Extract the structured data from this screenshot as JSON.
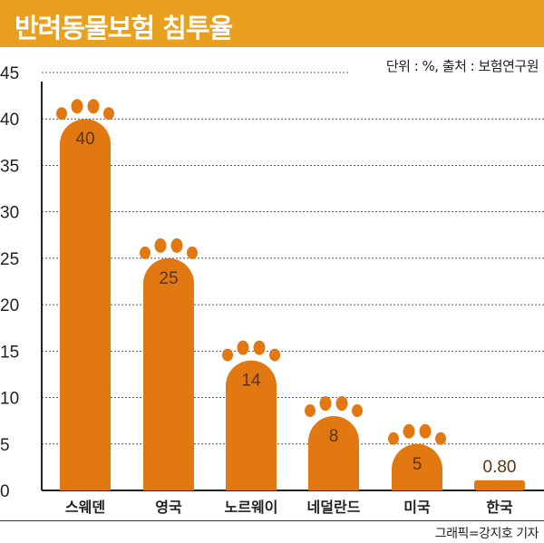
{
  "chart_data": {
    "type": "bar",
    "title": "반려동물보험 침투율",
    "note": "단위 : %, 출처 : 보험연구원",
    "credit": "그래픽=강지호 기자",
    "categories": [
      "스웨덴",
      "영국",
      "노르웨이",
      "네덜란드",
      "미국",
      "한국"
    ],
    "values": [
      40,
      25,
      14,
      8,
      5,
      0.8
    ],
    "value_labels": [
      "40",
      "25",
      "14",
      "8",
      "5",
      "0.80"
    ],
    "ylim": [
      0,
      45
    ],
    "yticks": [
      0,
      5,
      10,
      15,
      20,
      25,
      30,
      35,
      40,
      45
    ],
    "grid": true,
    "xlabel": "",
    "ylabel": "",
    "colors": {
      "bar": "#E27812",
      "header": "#E9A01F",
      "value_text": "#5a3410"
    }
  }
}
